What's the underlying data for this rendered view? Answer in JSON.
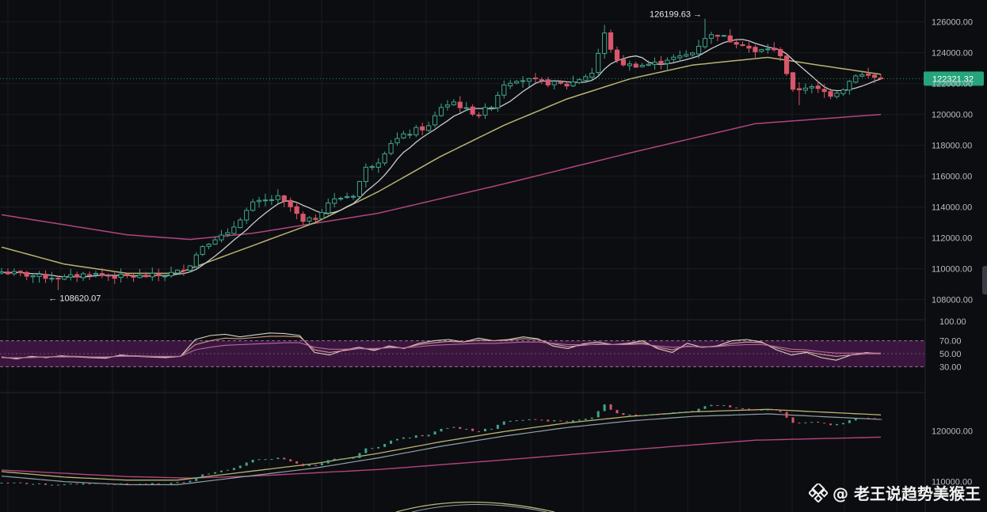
{
  "chart_data": [
    {
      "type": "candlestick",
      "panel": "price",
      "y_ticks": [
        "126000.00",
        "124000.00",
        "122000.00",
        "120000.00",
        "118000.00",
        "116000.00",
        "114000.00",
        "112000.00",
        "110000.00",
        "108000.00"
      ],
      "ylim": [
        106800,
        126800
      ],
      "current_price": "122321.32",
      "high_annotation": "126199.63",
      "low_annotation": "108620.07",
      "colors": {
        "up": "#3fa58f",
        "down": "#d9576b",
        "ma_fast": "#c9ccd1",
        "ma_mid": "#b8b472",
        "ma_slow": "#b2457f",
        "tag": "#26a47b"
      },
      "close_anchors": [
        [
          0,
          109800
        ],
        [
          6,
          109500
        ],
        [
          10,
          109400
        ],
        [
          14,
          109700
        ],
        [
          18,
          109500
        ],
        [
          22,
          109500
        ],
        [
          26,
          109600
        ],
        [
          28,
          109800
        ],
        [
          30,
          110300
        ],
        [
          32,
          111500
        ],
        [
          34,
          112000
        ],
        [
          36,
          112200
        ],
        [
          38,
          113300
        ],
        [
          40,
          114200
        ],
        [
          42,
          114400
        ],
        [
          44,
          114600
        ],
        [
          46,
          114000
        ],
        [
          48,
          113000
        ],
        [
          50,
          113300
        ],
        [
          52,
          114300
        ],
        [
          54,
          114600
        ],
        [
          56,
          114800
        ],
        [
          58,
          116500
        ],
        [
          60,
          117000
        ],
        [
          62,
          118200
        ],
        [
          64,
          118600
        ],
        [
          66,
          119000
        ],
        [
          68,
          119200
        ],
        [
          70,
          120500
        ],
        [
          72,
          120800
        ],
        [
          74,
          120300
        ],
        [
          76,
          120000
        ],
        [
          78,
          120600
        ],
        [
          80,
          122000
        ],
        [
          82,
          122300
        ],
        [
          84,
          122200
        ],
        [
          86,
          122100
        ],
        [
          88,
          122000
        ],
        [
          90,
          121900
        ],
        [
          92,
          122300
        ],
        [
          94,
          122700
        ],
        [
          96,
          125200
        ],
        [
          98,
          123400
        ],
        [
          100,
          123200
        ],
        [
          102,
          123200
        ],
        [
          104,
          123300
        ],
        [
          106,
          123600
        ],
        [
          108,
          123700
        ],
        [
          110,
          124000
        ],
        [
          112,
          125000
        ],
        [
          114,
          125200
        ],
        [
          116,
          124800
        ],
        [
          118,
          124600
        ],
        [
          120,
          124000
        ],
        [
          122,
          124300
        ],
        [
          124,
          123900
        ],
        [
          126,
          121500
        ],
        [
          128,
          121800
        ],
        [
          130,
          121600
        ],
        [
          132,
          121300
        ],
        [
          134,
          121700
        ],
        [
          136,
          122600
        ],
        [
          138,
          122500
        ],
        [
          140,
          122300
        ]
      ],
      "ma_slow_anchors": [
        [
          0,
          113500
        ],
        [
          20,
          112200
        ],
        [
          30,
          111900
        ],
        [
          40,
          112300
        ],
        [
          60,
          113600
        ],
        [
          80,
          115500
        ],
        [
          100,
          117500
        ],
        [
          120,
          119400
        ],
        [
          140,
          120000
        ]
      ],
      "ma_mid_anchors": [
        [
          0,
          111400
        ],
        [
          10,
          110300
        ],
        [
          20,
          109700
        ],
        [
          28,
          109700
        ],
        [
          40,
          111500
        ],
        [
          50,
          113000
        ],
        [
          60,
          115000
        ],
        [
          70,
          117300
        ],
        [
          80,
          119300
        ],
        [
          90,
          121000
        ],
        [
          100,
          122300
        ],
        [
          110,
          123200
        ],
        [
          122,
          123700
        ],
        [
          130,
          123200
        ],
        [
          140,
          122600
        ]
      ]
    },
    {
      "type": "line",
      "panel": "rsi",
      "y_ticks": [
        "100.00",
        "70.00",
        "50.00",
        "30.00"
      ],
      "ylim": [
        0,
        100
      ],
      "band": [
        30,
        70
      ],
      "series_values": [
        [
          45,
          42,
          46,
          44,
          47,
          45,
          44,
          43,
          48,
          46,
          45,
          44,
          46,
          72,
          78,
          80,
          76,
          79,
          82,
          81,
          78,
          52,
          48,
          56,
          60,
          55,
          62,
          58,
          66,
          70,
          72,
          68,
          74,
          70,
          72,
          76,
          73,
          62,
          58,
          65,
          68,
          64,
          66,
          70,
          58,
          52,
          66,
          60,
          62,
          70,
          72,
          68,
          56,
          48,
          52,
          44,
          40,
          48,
          52,
          50
        ],
        [
          44,
          43,
          45,
          45,
          46,
          46,
          45,
          44,
          47,
          47,
          46,
          45,
          46,
          64,
          70,
          74,
          73,
          75,
          77,
          77,
          76,
          56,
          52,
          55,
          58,
          57,
          60,
          59,
          64,
          67,
          69,
          68,
          71,
          70,
          71,
          73,
          72,
          65,
          61,
          63,
          65,
          64,
          65,
          67,
          60,
          56,
          62,
          60,
          61,
          66,
          68,
          67,
          59,
          53,
          53,
          49,
          46,
          48,
          50,
          50
        ],
        [
          44,
          44,
          44,
          45,
          45,
          45,
          45,
          45,
          46,
          46,
          46,
          46,
          46,
          56,
          60,
          63,
          64,
          65,
          66,
          67,
          67,
          60,
          57,
          57,
          58,
          58,
          59,
          59,
          61,
          63,
          64,
          65,
          66,
          66,
          67,
          68,
          68,
          66,
          64,
          64,
          64,
          64,
          64,
          65,
          62,
          60,
          61,
          61,
          61,
          63,
          64,
          64,
          61,
          57,
          56,
          53,
          51,
          51,
          51,
          51
        ]
      ]
    },
    {
      "type": "line",
      "panel": "overview",
      "y_ticks": [
        "120000.00",
        "110000.00"
      ],
      "ylim": [
        104000,
        127000
      ]
    }
  ],
  "watermark": {
    "text": "@ 老王说趋势美猴王",
    "icon": "binance-square-icon"
  }
}
